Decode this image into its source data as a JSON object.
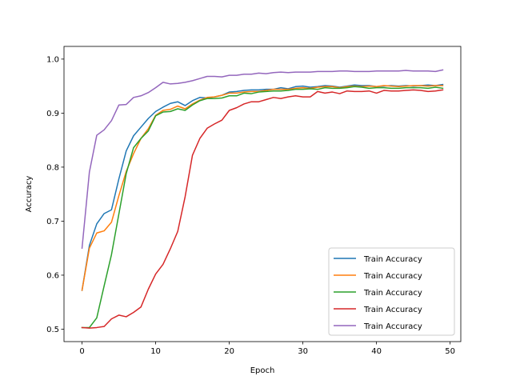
{
  "chart_data": {
    "type": "line",
    "title": "",
    "xlabel": "Epoch",
    "ylabel": "Accuracy",
    "xlim": [
      -2.45,
      51.45
    ],
    "ylim": [
      0.477,
      1.0235
    ],
    "xticks": [
      0,
      10,
      20,
      30,
      40,
      50
    ],
    "xtick_labels": [
      "0",
      "10",
      "20",
      "30",
      "40",
      "50"
    ],
    "yticks": [
      0.5,
      0.6,
      0.7,
      0.8,
      0.9,
      1.0
    ],
    "ytick_labels": [
      "0.5",
      "0.6",
      "0.7",
      "0.8",
      "0.9",
      "1.0"
    ],
    "grid": false,
    "legend_position": "lower-right",
    "series": [
      {
        "name": "Train Accuracy",
        "color": "#1f77b4",
        "x": [
          0,
          1,
          2,
          3,
          4,
          5,
          6,
          7,
          8,
          9,
          10,
          11,
          12,
          13,
          14,
          15,
          16,
          17,
          18,
          19,
          20,
          21,
          22,
          23,
          24,
          25,
          26,
          27,
          28,
          29,
          30,
          31,
          32,
          33,
          34,
          35,
          36,
          37,
          38,
          39,
          40,
          41,
          42,
          43,
          44,
          45,
          46,
          47,
          48,
          49
        ],
        "values": [
          0.572,
          0.655,
          0.695,
          0.714,
          0.721,
          0.778,
          0.83,
          0.858,
          0.874,
          0.89,
          0.903,
          0.911,
          0.918,
          0.921,
          0.914,
          0.923,
          0.929,
          0.928,
          0.93,
          0.933,
          0.939,
          0.94,
          0.942,
          0.943,
          0.943,
          0.944,
          0.944,
          0.947,
          0.945,
          0.949,
          0.95,
          0.948,
          0.949,
          0.951,
          0.95,
          0.948,
          0.95,
          0.952,
          0.951,
          0.951,
          0.949,
          0.95,
          0.951,
          0.95,
          0.951,
          0.95,
          0.951,
          0.952,
          0.951,
          0.953
        ]
      },
      {
        "name": "Train Accuracy",
        "color": "#ff7f0e",
        "x": [
          0,
          1,
          2,
          3,
          4,
          5,
          6,
          7,
          8,
          9,
          10,
          11,
          12,
          13,
          14,
          15,
          16,
          17,
          18,
          19,
          20,
          21,
          22,
          23,
          24,
          25,
          26,
          27,
          28,
          29,
          30,
          31,
          32,
          33,
          34,
          35,
          36,
          37,
          38,
          39,
          40,
          41,
          42,
          43,
          44,
          45,
          46,
          47,
          48,
          49
        ],
        "values": [
          0.572,
          0.65,
          0.678,
          0.682,
          0.698,
          0.747,
          0.792,
          0.825,
          0.853,
          0.871,
          0.896,
          0.905,
          0.907,
          0.913,
          0.908,
          0.917,
          0.924,
          0.929,
          0.93,
          0.933,
          0.937,
          0.937,
          0.939,
          0.94,
          0.94,
          0.942,
          0.944,
          0.944,
          0.944,
          0.946,
          0.947,
          0.946,
          0.948,
          0.949,
          0.949,
          0.947,
          0.949,
          0.95,
          0.949,
          0.95,
          0.949,
          0.951,
          0.95,
          0.949,
          0.95,
          0.951,
          0.951,
          0.95,
          0.951,
          0.951
        ]
      },
      {
        "name": "Train Accuracy",
        "color": "#2ca02c",
        "x": [
          0,
          1,
          2,
          3,
          4,
          5,
          6,
          7,
          8,
          9,
          10,
          11,
          12,
          13,
          14,
          15,
          16,
          17,
          18,
          19,
          20,
          21,
          22,
          23,
          24,
          25,
          26,
          27,
          28,
          29,
          30,
          31,
          32,
          33,
          34,
          35,
          36,
          37,
          38,
          39,
          40,
          41,
          42,
          43,
          44,
          45,
          46,
          47,
          48,
          49
        ],
        "values": [
          0.503,
          0.503,
          0.521,
          0.58,
          0.638,
          0.713,
          0.788,
          0.836,
          0.853,
          0.867,
          0.895,
          0.902,
          0.903,
          0.908,
          0.905,
          0.915,
          0.923,
          0.927,
          0.927,
          0.928,
          0.932,
          0.932,
          0.937,
          0.936,
          0.939,
          0.94,
          0.941,
          0.941,
          0.942,
          0.944,
          0.944,
          0.945,
          0.944,
          0.947,
          0.946,
          0.946,
          0.947,
          0.949,
          0.948,
          0.946,
          0.947,
          0.947,
          0.946,
          0.946,
          0.947,
          0.947,
          0.947,
          0.946,
          0.948,
          0.946
        ]
      },
      {
        "name": "Train Accuracy",
        "color": "#d62728",
        "x": [
          0,
          1,
          2,
          3,
          4,
          5,
          6,
          7,
          8,
          9,
          10,
          11,
          12,
          13,
          14,
          15,
          16,
          17,
          18,
          19,
          20,
          21,
          22,
          23,
          24,
          25,
          26,
          27,
          28,
          29,
          30,
          31,
          32,
          33,
          34,
          35,
          36,
          37,
          38,
          39,
          40,
          41,
          42,
          43,
          44,
          45,
          46,
          47,
          48,
          49
        ],
        "values": [
          0.503,
          0.502,
          0.503,
          0.505,
          0.519,
          0.526,
          0.523,
          0.531,
          0.541,
          0.574,
          0.602,
          0.62,
          0.649,
          0.681,
          0.745,
          0.822,
          0.853,
          0.872,
          0.88,
          0.887,
          0.905,
          0.91,
          0.917,
          0.921,
          0.921,
          0.925,
          0.929,
          0.927,
          0.93,
          0.932,
          0.93,
          0.93,
          0.94,
          0.937,
          0.939,
          0.936,
          0.941,
          0.94,
          0.94,
          0.941,
          0.937,
          0.942,
          0.941,
          0.941,
          0.942,
          0.943,
          0.942,
          0.94,
          0.941,
          0.943
        ]
      },
      {
        "name": "Train Accuracy",
        "color": "#9467bd",
        "x": [
          0,
          1,
          2,
          3,
          4,
          5,
          6,
          7,
          8,
          9,
          10,
          11,
          12,
          13,
          14,
          15,
          16,
          17,
          18,
          19,
          20,
          21,
          22,
          23,
          24,
          25,
          26,
          27,
          28,
          29,
          30,
          31,
          32,
          33,
          34,
          35,
          36,
          37,
          38,
          39,
          40,
          41,
          42,
          43,
          44,
          45,
          46,
          47,
          48,
          49
        ],
        "values": [
          0.65,
          0.791,
          0.859,
          0.869,
          0.886,
          0.915,
          0.916,
          0.929,
          0.932,
          0.938,
          0.947,
          0.957,
          0.954,
          0.955,
          0.957,
          0.96,
          0.964,
          0.968,
          0.968,
          0.967,
          0.97,
          0.97,
          0.972,
          0.972,
          0.974,
          0.973,
          0.975,
          0.976,
          0.975,
          0.976,
          0.976,
          0.976,
          0.977,
          0.977,
          0.977,
          0.978,
          0.978,
          0.977,
          0.977,
          0.977,
          0.978,
          0.978,
          0.978,
          0.978,
          0.979,
          0.978,
          0.978,
          0.978,
          0.977,
          0.98
        ]
      }
    ]
  }
}
